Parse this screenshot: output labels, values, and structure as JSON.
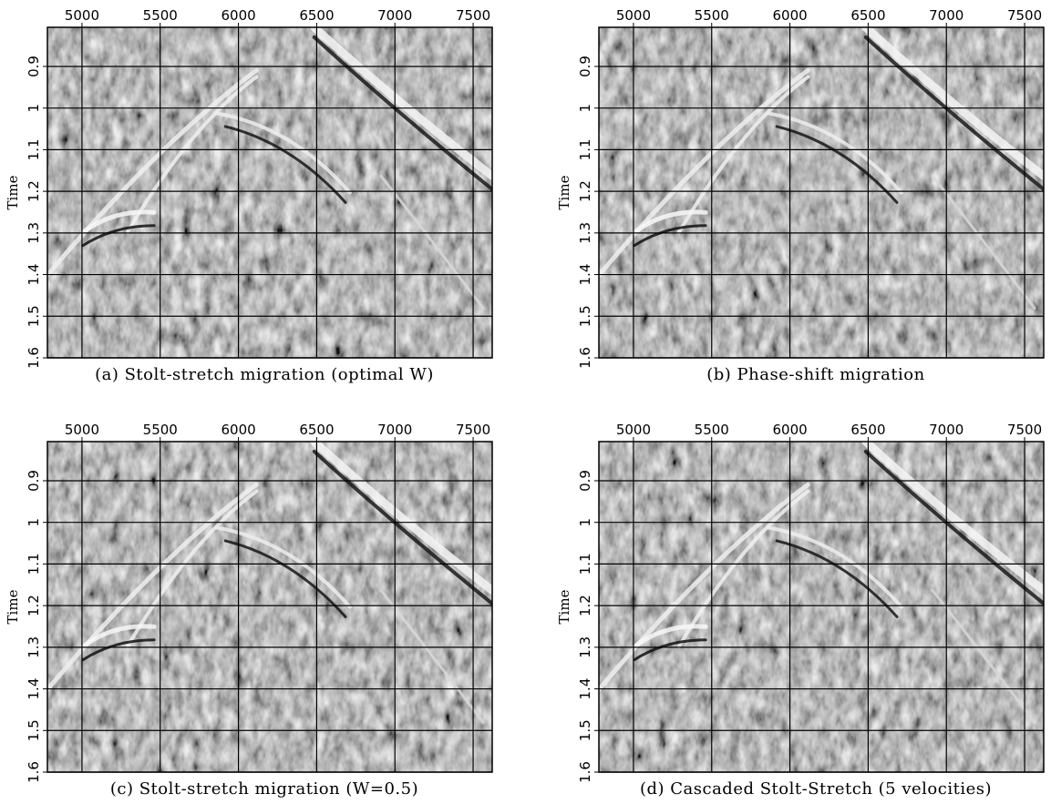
{
  "chart_data": [
    {
      "type": "image",
      "caption": "(a) Stolt-stretch migration (optimal W)",
      "ylabel": "Time",
      "xlim": [
        4779,
        7622
      ],
      "ylim": [
        0.806,
        1.6
      ],
      "y_inverted": true,
      "grid": true,
      "xticks": [
        5000,
        5500,
        6000,
        6500,
        7000,
        7500
      ],
      "yticks": [
        0.9,
        1,
        1.1,
        1.2,
        1.3,
        1.4,
        1.5,
        1.6
      ]
    },
    {
      "type": "image",
      "caption": "(b) Phase-shift migration",
      "ylabel": "Time",
      "xlim": [
        4779,
        7622
      ],
      "ylim": [
        0.806,
        1.6
      ],
      "y_inverted": true,
      "grid": true,
      "xticks": [
        5000,
        5500,
        6000,
        6500,
        7000,
        7500
      ],
      "yticks": [
        0.9,
        1,
        1.1,
        1.2,
        1.3,
        1.4,
        1.5,
        1.6
      ]
    },
    {
      "type": "image",
      "caption": "(c) Stolt-stretch migration (W=0.5)",
      "ylabel": "Time",
      "xlim": [
        4779,
        7622
      ],
      "ylim": [
        0.806,
        1.6
      ],
      "y_inverted": true,
      "grid": true,
      "xticks": [
        5000,
        5500,
        6000,
        6500,
        7000,
        7500
      ],
      "yticks": [
        0.9,
        1,
        1.1,
        1.2,
        1.3,
        1.4,
        1.5,
        1.6
      ]
    },
    {
      "type": "image",
      "caption": "(d) Cascaded Stolt-Stretch (5 velocities)",
      "ylabel": "Time",
      "xlim": [
        4779,
        7622
      ],
      "ylim": [
        0.806,
        1.6
      ],
      "y_inverted": true,
      "grid": true,
      "xticks": [
        5000,
        5500,
        6000,
        6500,
        7000,
        7500
      ],
      "yticks": [
        0.9,
        1,
        1.1,
        1.2,
        1.3,
        1.4,
        1.5,
        1.6
      ]
    }
  ]
}
